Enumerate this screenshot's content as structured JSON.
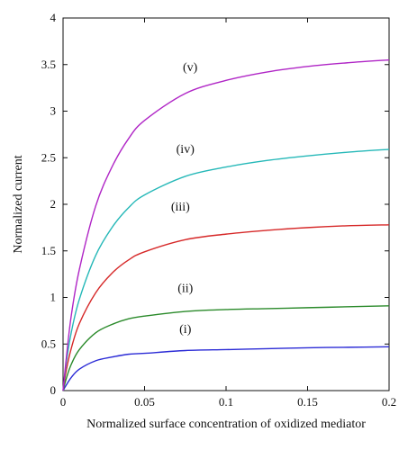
{
  "chart_data": {
    "type": "line",
    "title": "",
    "xlabel": "Normalized surface concentration of oxidized mediator",
    "ylabel": "Normalized current",
    "xlim": [
      0,
      0.2
    ],
    "ylim": [
      0,
      4
    ],
    "xticks": [
      0,
      0.05,
      0.1,
      0.15,
      0.2
    ],
    "xtick_labels": [
      "0",
      "0.05",
      "0.1",
      "0.15",
      "0.2"
    ],
    "yticks": [
      0,
      0.5,
      1,
      1.5,
      2,
      2.5,
      3,
      3.5,
      4
    ],
    "ytick_labels": [
      "0",
      "0.5",
      "1",
      "1.5",
      "2",
      "2.5",
      "3",
      "3.5",
      "4"
    ],
    "grid": false,
    "legend": "none",
    "x": [
      0,
      0.002,
      0.005,
      0.01,
      0.02,
      0.03,
      0.04,
      0.05,
      0.075,
      0.1,
      0.125,
      0.15,
      0.175,
      0.2
    ],
    "series": [
      {
        "name": "(i)",
        "label_at": [
          0.075,
          0.62
        ],
        "color": "#2b2bd6",
        "values": [
          0,
          0.06,
          0.14,
          0.23,
          0.32,
          0.36,
          0.39,
          0.4,
          0.43,
          0.44,
          0.45,
          0.46,
          0.465,
          0.47
        ]
      },
      {
        "name": "(ii)",
        "label_at": [
          0.075,
          1.06
        ],
        "color": "#2a8a2a",
        "values": [
          0,
          0.13,
          0.28,
          0.44,
          0.62,
          0.71,
          0.77,
          0.8,
          0.85,
          0.87,
          0.88,
          0.89,
          0.9,
          0.91
        ]
      },
      {
        "name": "(iii)",
        "label_at": [
          0.072,
          1.93
        ],
        "color": "#d62828",
        "values": [
          0,
          0.22,
          0.45,
          0.72,
          1.05,
          1.26,
          1.4,
          1.49,
          1.62,
          1.68,
          1.72,
          1.75,
          1.77,
          1.78
        ]
      },
      {
        "name": "(iv)",
        "label_at": [
          0.075,
          2.55
        ],
        "color": "#25b8b8",
        "values": [
          0,
          0.3,
          0.62,
          0.98,
          1.45,
          1.75,
          1.96,
          2.1,
          2.3,
          2.4,
          2.47,
          2.52,
          2.56,
          2.59
        ]
      },
      {
        "name": "(v)",
        "label_at": [
          0.078,
          3.43
        ],
        "color": "#b026c6",
        "values": [
          0,
          0.35,
          0.8,
          1.3,
          1.98,
          2.4,
          2.7,
          2.9,
          3.19,
          3.33,
          3.42,
          3.48,
          3.52,
          3.55
        ]
      }
    ]
  }
}
